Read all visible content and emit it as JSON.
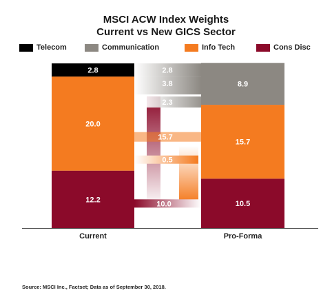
{
  "chart_data": {
    "type": "bar",
    "title": "MSCI ACW Index Weights",
    "subtitle": "Current vs New GICS Sector",
    "categories": [
      "Current",
      "Pro-Forma"
    ],
    "series": [
      {
        "name": "Cons Disc",
        "color": "#8b0a2a",
        "values": [
          12.2,
          10.5
        ]
      },
      {
        "name": "Info Tech",
        "color": "#f47b20",
        "values": [
          20.0,
          15.7
        ]
      },
      {
        "name": "Communication",
        "color": "#8c8882",
        "values": [
          0,
          8.9
        ]
      },
      {
        "name": "Telecom",
        "color": "#000000",
        "values": [
          2.8,
          0
        ]
      }
    ],
    "bar_labels": {
      "Current": [
        "12.2",
        "20.0",
        "2.8"
      ],
      "Pro-Forma": [
        "10.5",
        "15.7",
        "8.9"
      ]
    },
    "flows": [
      {
        "label": "2.8",
        "from": "Telecom",
        "to": "Communication"
      },
      {
        "label": "3.8",
        "from": "Info Tech",
        "to": "Communication"
      },
      {
        "label": "2.3",
        "from": "Cons Disc",
        "to": "Communication"
      },
      {
        "label": "15.7",
        "from": "Info Tech",
        "to": "Info Tech"
      },
      {
        "label": "0.5",
        "from": "Info Tech",
        "to": "Cons Disc"
      },
      {
        "label": "10.0",
        "from": "Cons Disc",
        "to": "Cons Disc"
      }
    ],
    "ylim": [
      0,
      35
    ],
    "legend_position": "top",
    "legend_order": [
      "Telecom",
      "Communication",
      "Info Tech",
      "Cons Disc"
    ],
    "grid": false
  },
  "footer": {
    "source": "Source: MSCI Inc., Factset; Data as of September 30, 2018."
  }
}
